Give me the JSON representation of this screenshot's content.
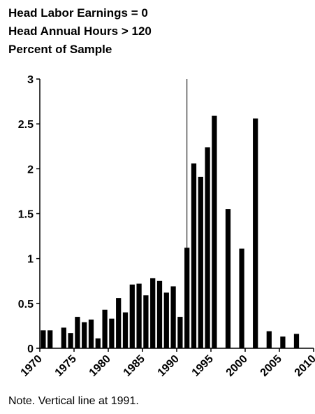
{
  "chart_data": {
    "type": "bar",
    "title_lines": [
      "Head Labor Earnings = 0",
      "Head Annual Hours > 120",
      "Percent of Sample"
    ],
    "note": "Note. Vertical line at 1991.",
    "xlabel": "",
    "ylabel": "",
    "xlim": [
      1970,
      2010
    ],
    "ylim": [
      0,
      3
    ],
    "x_ticks": [
      "1970",
      "1975",
      "1980",
      "1985",
      "1990",
      "1995",
      "2000",
      "2005",
      "2010"
    ],
    "y_ticks": [
      "0",
      "0.5",
      "1",
      "1.5",
      "2",
      "2.5",
      "3"
    ],
    "vertical_line_x": 1991,
    "categories": [
      1970,
      1971,
      1973,
      1974,
      1975,
      1976,
      1977,
      1978,
      1979,
      1980,
      1981,
      1982,
      1983,
      1984,
      1985,
      1986,
      1987,
      1988,
      1989,
      1990,
      1991,
      1992,
      1993,
      1994,
      1995,
      1997,
      1999,
      2001,
      2003,
      2005,
      2007
    ],
    "values": [
      0.2,
      0.2,
      0.23,
      0.17,
      0.35,
      0.29,
      0.32,
      0.11,
      0.43,
      0.33,
      0.56,
      0.4,
      0.71,
      0.72,
      0.59,
      0.78,
      0.75,
      0.62,
      0.69,
      0.35,
      1.12,
      2.06,
      1.91,
      2.24,
      2.59,
      1.55,
      1.11,
      2.56,
      0.19,
      0.13,
      0.16
    ],
    "bar_color": "#000000"
  }
}
